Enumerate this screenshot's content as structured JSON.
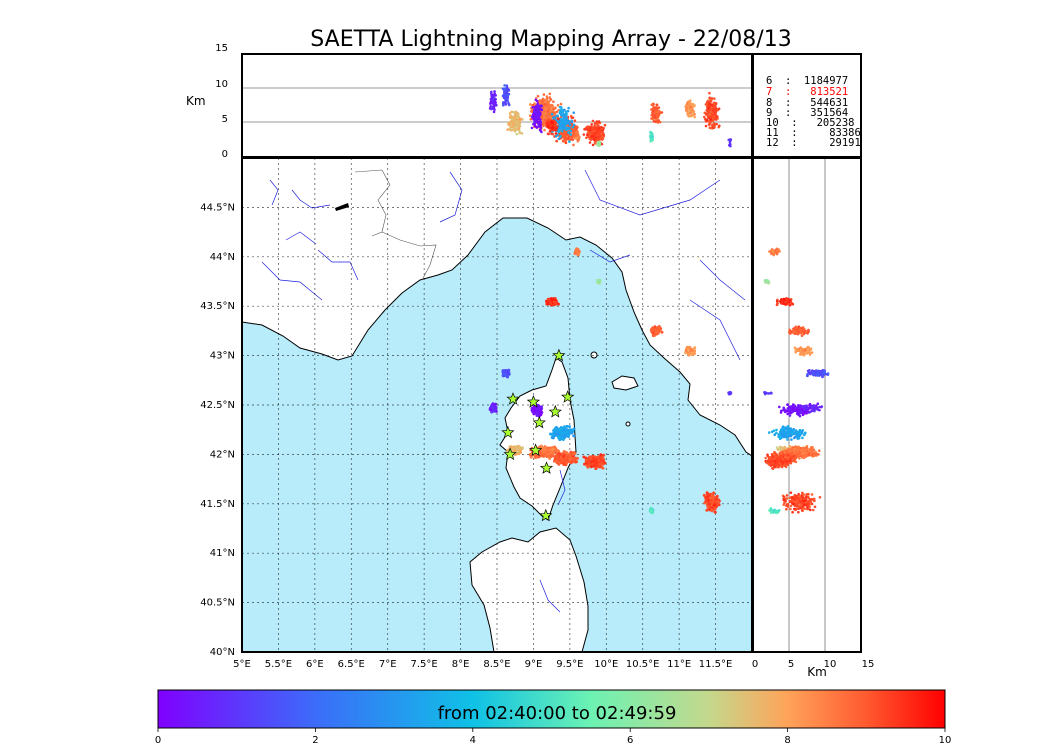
{
  "chart_data": {
    "type": "scatter",
    "title": "SAETTA Lightning Mapping Array - 22/08/13",
    "map": {
      "xlim": [
        5,
        12
      ],
      "ylim": [
        40,
        45
      ],
      "x_ticks": [
        {
          "v": 5,
          "label": "5°E"
        },
        {
          "v": 5.5,
          "label": "5.5°E"
        },
        {
          "v": 6,
          "label": "6°E"
        },
        {
          "v": 6.5,
          "label": "6.5°E"
        },
        {
          "v": 7,
          "label": "7°E"
        },
        {
          "v": 7.5,
          "label": "7.5°E"
        },
        {
          "v": 8,
          "label": "8°E"
        },
        {
          "v": 8.5,
          "label": "8.5°E"
        },
        {
          "v": 9,
          "label": "9°E"
        },
        {
          "v": 9.5,
          "label": "9.5°E"
        },
        {
          "v": 10,
          "label": "10°E"
        },
        {
          "v": 10.5,
          "label": "10.5°E"
        },
        {
          "v": 11,
          "label": "11°E"
        },
        {
          "v": 11.5,
          "label": "11.5°E"
        }
      ],
      "y_ticks": [
        {
          "v": 40,
          "label": "40°N"
        },
        {
          "v": 40.5,
          "label": "40.5°N"
        },
        {
          "v": 41,
          "label": "41°N"
        },
        {
          "v": 41.5,
          "label": "41.5°N"
        },
        {
          "v": 42,
          "label": "42°N"
        },
        {
          "v": 42.5,
          "label": "42.5°N"
        },
        {
          "v": 43,
          "label": "43°N"
        },
        {
          "v": 43.5,
          "label": "43.5°N"
        },
        {
          "v": 44,
          "label": "44°N"
        },
        {
          "v": 44.5,
          "label": "44.5°N"
        }
      ],
      "grid": "dotted"
    },
    "altitude_axis": {
      "label": "Km",
      "range": [
        0,
        15
      ],
      "ticks": [
        {
          "v": 0,
          "label": "0"
        },
        {
          "v": 5,
          "label": "5"
        },
        {
          "v": 10,
          "label": "10"
        },
        {
          "v": 15,
          "label": "15"
        }
      ],
      "reference_lines": [
        5,
        10
      ]
    },
    "stations": [
      {
        "lon": 9.35,
        "lat": 43.0
      },
      {
        "lon": 8.72,
        "lat": 42.56
      },
      {
        "lon": 9.0,
        "lat": 42.53
      },
      {
        "lon": 9.47,
        "lat": 42.58
      },
      {
        "lon": 9.3,
        "lat": 42.43
      },
      {
        "lon": 9.08,
        "lat": 42.32
      },
      {
        "lon": 8.65,
        "lat": 42.22
      },
      {
        "lon": 8.68,
        "lat": 42.0
      },
      {
        "lon": 9.03,
        "lat": 42.04
      },
      {
        "lon": 9.18,
        "lat": 41.86
      },
      {
        "lon": 9.17,
        "lat": 41.38
      }
    ],
    "sources": [
      {
        "lon": 8.75,
        "lat": 42.04,
        "lon_spread": 0.12,
        "lat_spread": 0.06,
        "alt": 5.0,
        "alt_spread": 2.0,
        "time": 7.6,
        "count": 160
      },
      {
        "lon": 9.15,
        "lat": 42.02,
        "lon_spread": 0.25,
        "lat_spread": 0.07,
        "alt": 6.5,
        "alt_spread": 3.0,
        "time": 8.7,
        "count": 320
      },
      {
        "lon": 9.45,
        "lat": 41.96,
        "lon_spread": 0.22,
        "lat_spread": 0.08,
        "alt": 4.0,
        "alt_spread": 2.5,
        "time": 9.0,
        "count": 260
      },
      {
        "lon": 9.85,
        "lat": 41.93,
        "lon_spread": 0.18,
        "lat_spread": 0.08,
        "alt": 3.5,
        "alt_spread": 2.0,
        "time": 9.3,
        "count": 220
      },
      {
        "lon": 9.4,
        "lat": 42.22,
        "lon_spread": 0.2,
        "lat_spread": 0.09,
        "alt": 5.0,
        "alt_spread": 3.0,
        "time": 3.3,
        "count": 140
      },
      {
        "lon": 9.05,
        "lat": 42.45,
        "lon_spread": 0.08,
        "lat_spread": 0.08,
        "alt": 6.0,
        "alt_spread": 3.0,
        "time": 0.3,
        "count": 110
      },
      {
        "lon": 8.62,
        "lat": 42.82,
        "lon_spread": 0.06,
        "lat_spread": 0.05,
        "alt": 9.0,
        "alt_spread": 2.0,
        "time": 1.5,
        "count": 70
      },
      {
        "lon": 8.45,
        "lat": 42.47,
        "lon_spread": 0.06,
        "lat_spread": 0.05,
        "alt": 8.0,
        "alt_spread": 2.0,
        "time": 0.6,
        "count": 55
      },
      {
        "lon": 9.25,
        "lat": 43.55,
        "lon_spread": 0.1,
        "lat_spread": 0.05,
        "alt": 4.5,
        "alt_spread": 1.5,
        "time": 9.5,
        "count": 80
      },
      {
        "lon": 9.6,
        "lat": 44.05,
        "lon_spread": 0.05,
        "lat_spread": 0.05,
        "alt": 3.0,
        "alt_spread": 1.0,
        "time": 8.6,
        "count": 40
      },
      {
        "lon": 9.9,
        "lat": 43.75,
        "lon_spread": 0.03,
        "lat_spread": 0.03,
        "alt": 2.0,
        "alt_spread": 1.0,
        "time": 6.5,
        "count": 15
      },
      {
        "lon": 10.68,
        "lat": 43.25,
        "lon_spread": 0.1,
        "lat_spread": 0.06,
        "alt": 6.5,
        "alt_spread": 2.0,
        "time": 8.9,
        "count": 80
      },
      {
        "lon": 11.15,
        "lat": 43.05,
        "lon_spread": 0.09,
        "lat_spread": 0.05,
        "alt": 7.0,
        "alt_spread": 2.0,
        "time": 8.2,
        "count": 70
      },
      {
        "lon": 11.45,
        "lat": 41.52,
        "lon_spread": 0.12,
        "lat_spread": 0.12,
        "alt": 6.5,
        "alt_spread": 3.0,
        "time": 9.2,
        "count": 200
      },
      {
        "lon": 10.62,
        "lat": 41.43,
        "lon_spread": 0.04,
        "lat_spread": 0.03,
        "alt": 3.0,
        "alt_spread": 1.0,
        "time": 5.0,
        "count": 20
      },
      {
        "lon": 11.7,
        "lat": 42.62,
        "lon_spread": 0.04,
        "lat_spread": 0.02,
        "alt": 2.0,
        "alt_spread": 1.0,
        "time": 1.0,
        "count": 12
      }
    ],
    "source_counts": [
      {
        "label": "6  :  1184977"
      },
      {
        "label": "7  :   813521",
        "highlight": true
      },
      {
        "label": "8  :   544631"
      },
      {
        "label": "9  :   351564"
      },
      {
        "label": "10  :   205238"
      },
      {
        "label": "11  :     83386"
      },
      {
        "label": "12  :     29191"
      }
    ],
    "colorbar": {
      "label": "from 02:40:00 to 02:49:59",
      "range": [
        0,
        10
      ],
      "ticks": [
        {
          "v": 0,
          "label": "0"
        },
        {
          "v": 2,
          "label": "2"
        },
        {
          "v": 4,
          "label": "4"
        },
        {
          "v": 6,
          "label": "6"
        },
        {
          "v": 8,
          "label": "8"
        },
        {
          "v": 10,
          "label": "10"
        }
      ],
      "colormap": "rainbow"
    },
    "colors": {
      "sea": "#b8ecfa",
      "coast": "#000000",
      "rivers": "#2222dd",
      "borders": "#555555",
      "station_fill": "#aaff33",
      "highlight": "#ff0000"
    }
  }
}
